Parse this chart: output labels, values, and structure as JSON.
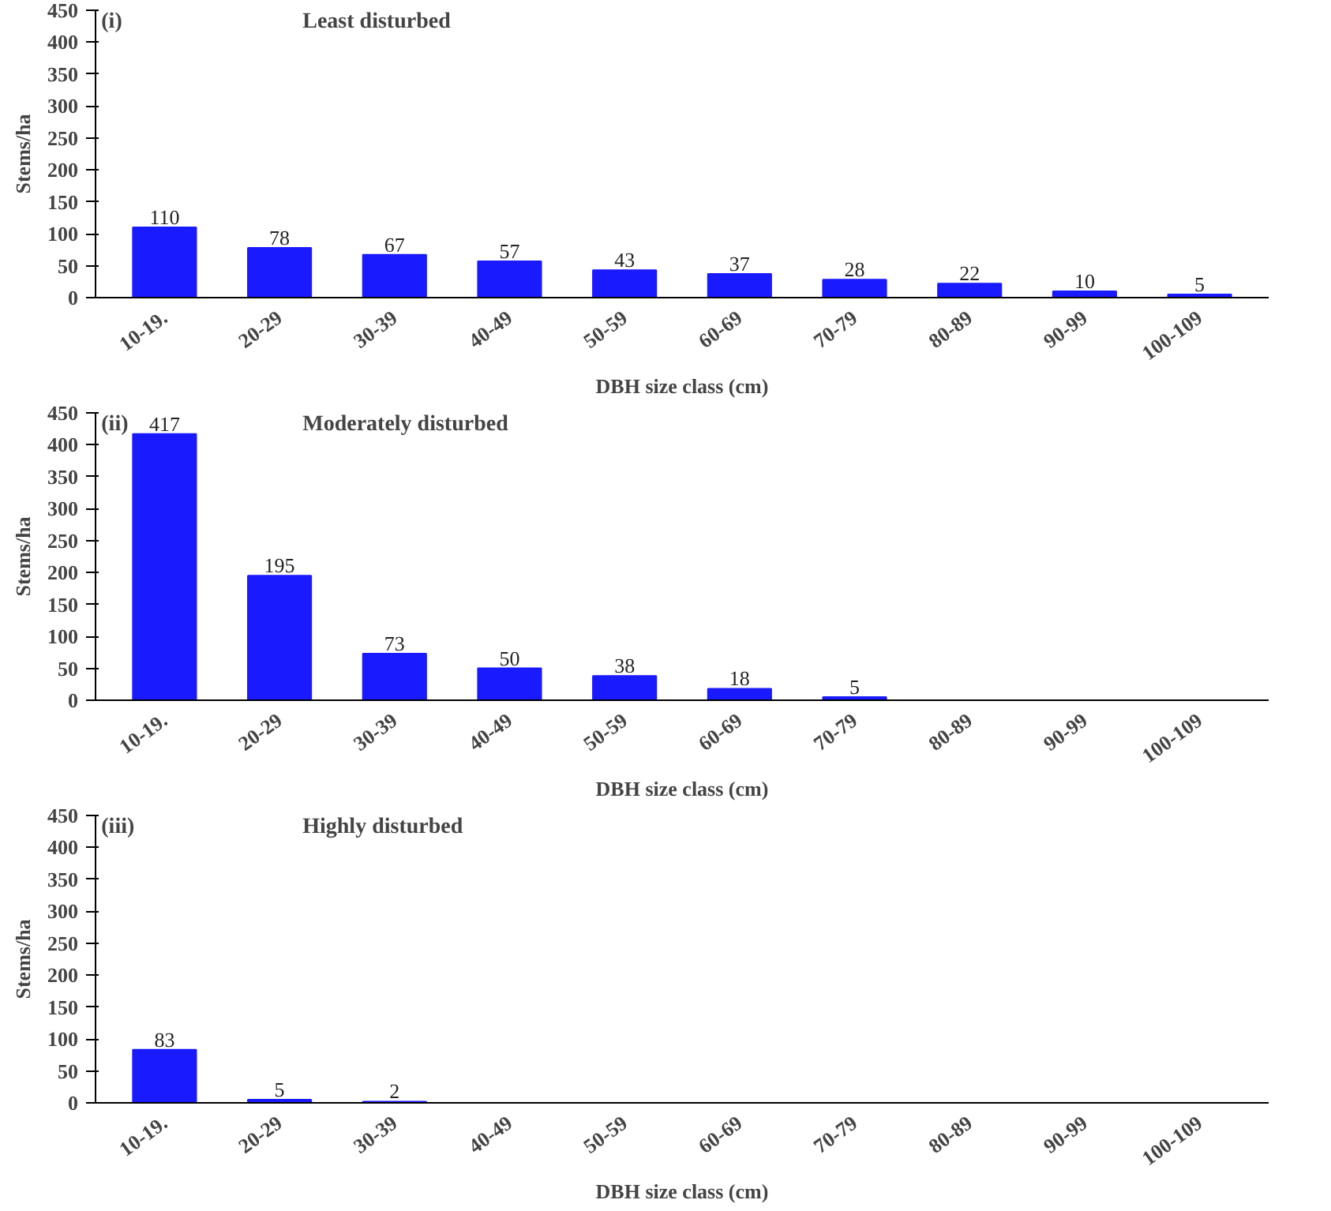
{
  "chart_data": [
    {
      "type": "bar",
      "title": "Least disturbed",
      "annotations": [
        "(i)"
      ],
      "xlabel": "DBH size class (cm)",
      "ylabel": "Stems/ha",
      "categories": [
        "10-19.",
        "20-29",
        "30-39",
        "40-49",
        "50-59",
        "60-69",
        "70-79",
        "80-89",
        "90-99",
        "100-109"
      ],
      "values": [
        110,
        78,
        67,
        57,
        43,
        37,
        28,
        22,
        10,
        5
      ],
      "color": "#1a1aff",
      "ylim": [
        0,
        450
      ],
      "yticks": [
        0,
        50,
        100,
        150,
        200,
        250,
        300,
        350,
        400,
        450
      ],
      "data_labels": true
    },
    {
      "type": "bar",
      "title": "Moderately disturbed",
      "annotations": [
        "(ii)"
      ],
      "xlabel": "DBH size class (cm)",
      "ylabel": "Stems/ha",
      "categories": [
        "10-19.",
        "20-29",
        "30-39",
        "40-49",
        "50-59",
        "60-69",
        "70-79",
        "80-89",
        "90-99",
        "100-109"
      ],
      "values": [
        417,
        195,
        73,
        50,
        38,
        18,
        5,
        null,
        null,
        null
      ],
      "color": "#1a1aff",
      "ylim": [
        0,
        450
      ],
      "yticks": [
        0,
        50,
        100,
        150,
        200,
        250,
        300,
        350,
        400,
        450
      ],
      "data_labels": true
    },
    {
      "type": "bar",
      "title": "Highly disturbed",
      "annotations": [
        "(iii)"
      ],
      "xlabel": "DBH size class (cm)",
      "ylabel": "Stems/ha",
      "categories": [
        "10-19.",
        "20-29",
        "30-39",
        "40-49",
        "50-59",
        "60-69",
        "70-79",
        "80-89",
        "90-99",
        "100-109"
      ],
      "values": [
        83,
        5,
        2,
        null,
        null,
        null,
        null,
        null,
        null,
        null
      ],
      "color": "#1a1aff",
      "ylim": [
        0,
        450
      ],
      "yticks": [
        0,
        50,
        100,
        150,
        200,
        250,
        300,
        350,
        400,
        450
      ],
      "data_labels": true
    }
  ]
}
